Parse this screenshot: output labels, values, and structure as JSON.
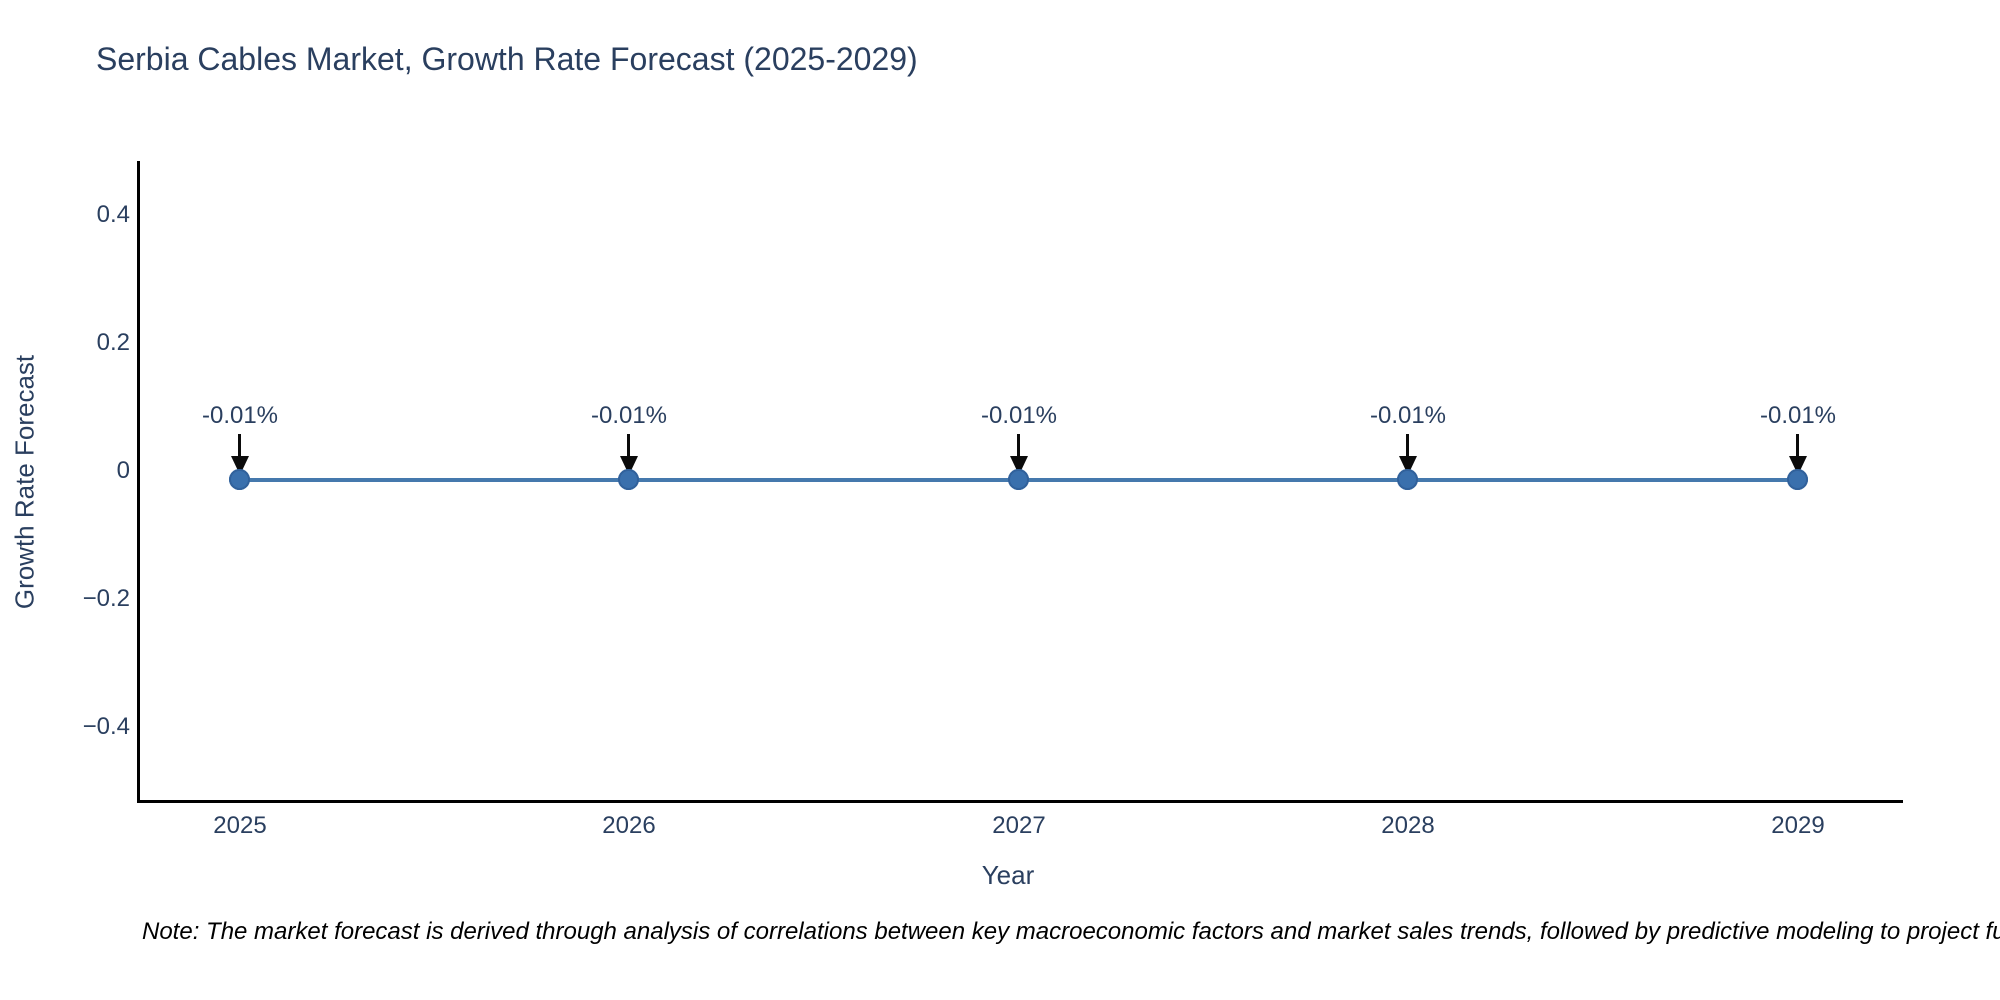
{
  "title": "Serbia Cables Market, Growth Rate Forecast (2025-2029)",
  "y_axis": {
    "label": "Growth Rate Forecast",
    "ticks": [
      "0.4",
      "0.2",
      "0",
      "−0.2",
      "−0.4"
    ]
  },
  "x_axis": {
    "label": "Year",
    "ticks": [
      "2025",
      "2026",
      "2027",
      "2028",
      "2029"
    ]
  },
  "points": [
    {
      "year": "2025",
      "label": "-0.01%"
    },
    {
      "year": "2026",
      "label": "-0.01%"
    },
    {
      "year": "2027",
      "label": "-0.01%"
    },
    {
      "year": "2028",
      "label": "-0.01%"
    },
    {
      "year": "2029",
      "label": "-0.01%"
    }
  ],
  "note": "Note: The market forecast is derived through analysis of correlations between key macroeconomic factors and market sales trends, followed by predictive modeling to project future sales",
  "colors": {
    "text": "#2a3f5f",
    "axis_line": "#000000",
    "series_line": "#4579ad",
    "marker_fill": "#3a70ad",
    "arrow": "#0b0b0b",
    "background": "#ffffff"
  },
  "chart_data": {
    "type": "line",
    "title": "Serbia Cables Market, Growth Rate Forecast (2025-2029)",
    "xlabel": "Year",
    "ylabel": "Growth Rate Forecast",
    "x": [
      2025,
      2026,
      2027,
      2028,
      2029
    ],
    "series": [
      {
        "name": "Growth Rate Forecast",
        "values": [
          -0.01,
          -0.01,
          -0.01,
          -0.01,
          -0.01
        ]
      }
    ],
    "point_labels": [
      "-0.01%",
      "-0.01%",
      "-0.01%",
      "-0.01%",
      "-0.01%"
    ],
    "yticks": [
      0.4,
      0.2,
      0,
      -0.2,
      -0.4
    ],
    "ylim": [
      -0.52,
      0.48
    ],
    "grid": false,
    "legend": false,
    "annotations": "each data point labeled with a value text and a downward black arrow pointing to the marker"
  }
}
